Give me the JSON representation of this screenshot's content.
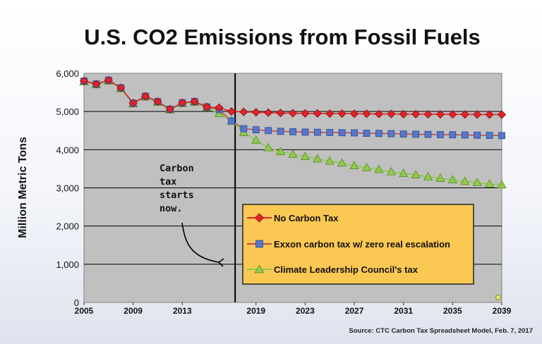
{
  "chart_data": {
    "type": "line",
    "title": "U.S. CO2 Emissions from Fossil Fuels",
    "xlabel": "",
    "ylabel": "Million Metric Tons",
    "xlim": [
      2005,
      2039
    ],
    "ylim": [
      0,
      6000
    ],
    "x_ticks": [
      "2005",
      "2009",
      "2013",
      "2019",
      "2023",
      "2027",
      "2031",
      "2035",
      "2039"
    ],
    "y_ticks": [
      "0",
      "1,000",
      "2,000",
      "3,000",
      "4,000",
      "5,000",
      "6,000"
    ],
    "grid": true,
    "legend_position": "bottom-right",
    "vertical_line_x": 2017.3,
    "annotation": [
      "Carbon",
      "tax",
      "starts",
      "now."
    ],
    "source": "Source: CTC Carbon Tax Spreadsheet Model, Feb. 7, 2017",
    "historical": {
      "x": [
        2005,
        2006,
        2007,
        2008,
        2009,
        2010,
        2011,
        2012,
        2013,
        2014,
        2015,
        2016,
        2017
      ],
      "values": [
        5800,
        5720,
        5820,
        5620,
        5220,
        5400,
        5260,
        5060,
        5230,
        5260,
        5120,
        4950,
        4750
      ]
    },
    "series": [
      {
        "name": "No Carbon Tax",
        "color": "#e0242a",
        "marker": "diamond",
        "x": [
          2005,
          2006,
          2007,
          2008,
          2009,
          2010,
          2011,
          2012,
          2013,
          2014,
          2015,
          2016,
          2017,
          2018,
          2019,
          2020,
          2021,
          2022,
          2023,
          2024,
          2025,
          2026,
          2027,
          2028,
          2029,
          2030,
          2031,
          2032,
          2033,
          2034,
          2035,
          2036,
          2037,
          2038,
          2039
        ],
        "values": [
          5800,
          5720,
          5820,
          5620,
          5220,
          5400,
          5260,
          5060,
          5230,
          5260,
          5120,
          5100,
          5000,
          4990,
          4980,
          4970,
          4960,
          4955,
          4950,
          4950,
          4945,
          4945,
          4940,
          4940,
          4935,
          4935,
          4930,
          4930,
          4928,
          4926,
          4925,
          4924,
          4922,
          4920,
          4920
        ]
      },
      {
        "name": "Exxon carbon tax w/ zero real escalation",
        "color": "#5577c8",
        "marker": "square",
        "x": [
          2005,
          2006,
          2007,
          2008,
          2009,
          2010,
          2011,
          2012,
          2013,
          2014,
          2015,
          2016,
          2017,
          2018,
          2019,
          2020,
          2021,
          2022,
          2023,
          2024,
          2025,
          2026,
          2027,
          2028,
          2029,
          2030,
          2031,
          2032,
          2033,
          2034,
          2035,
          2036,
          2037,
          2038,
          2039
        ],
        "values": [
          5800,
          5720,
          5820,
          5620,
          5220,
          5400,
          5260,
          5060,
          5230,
          5260,
          5120,
          5050,
          4750,
          4550,
          4520,
          4500,
          4480,
          4470,
          4460,
          4455,
          4450,
          4445,
          4440,
          4430,
          4425,
          4420,
          4410,
          4405,
          4400,
          4395,
          4390,
          4385,
          4380,
          4375,
          4370
        ]
      },
      {
        "name": "Climate Leadership  Council's tax",
        "color": "#90c850",
        "marker": "triangle",
        "x": [
          2005,
          2006,
          2007,
          2008,
          2009,
          2010,
          2011,
          2012,
          2013,
          2014,
          2015,
          2016,
          2017,
          2018,
          2019,
          2020,
          2021,
          2022,
          2023,
          2024,
          2025,
          2026,
          2027,
          2028,
          2029,
          2030,
          2031,
          2032,
          2033,
          2034,
          2035,
          2036,
          2037,
          2038,
          2039
        ],
        "values": [
          5780,
          5700,
          5800,
          5600,
          5200,
          5380,
          5240,
          5040,
          5210,
          5240,
          5100,
          4950,
          4750,
          4450,
          4250,
          4050,
          3950,
          3880,
          3820,
          3760,
          3700,
          3650,
          3580,
          3530,
          3480,
          3420,
          3380,
          3340,
          3290,
          3250,
          3210,
          3170,
          3140,
          3100,
          3080
        ]
      }
    ]
  }
}
